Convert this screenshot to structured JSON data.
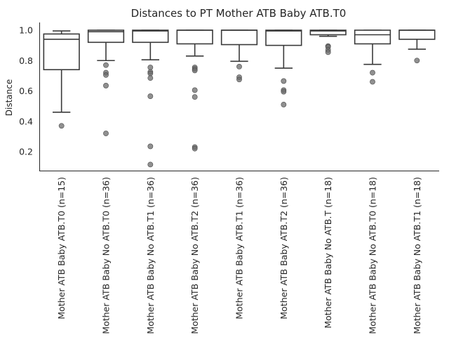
{
  "chart_data": {
    "type": "box",
    "title": "Distances to PT Mother ATB Baby ATB.T0",
    "ylabel": "Distance",
    "xlabel": "",
    "ylim": [
      0.06,
      1.05
    ],
    "yticks": [
      0.2,
      0.4,
      0.6,
      0.8,
      1.0
    ],
    "ytick_labels": [
      "0.2",
      "0.4",
      "0.6",
      "0.8",
      "1.0"
    ],
    "grid": false,
    "categories": [
      "Mother ATB Baby ATB.T0 (n=15)",
      "Mother ATB Baby No ATB.T0 (n=36)",
      "Mother ATB Baby No ATB.T1 (n=36)",
      "Mother ATB Baby No ATB.T2 (n=36)",
      "Mother ATB Baby ATB.T1 (n=36)",
      "Mother ATB Baby ATB.T2 (n=36)",
      "Mother ATB Baby No ATB.T (n=18)",
      "Mother ATB Baby No ATB.T0 (n=18)",
      "Mother ATB Baby No ATB.T1 (n=18)"
    ],
    "boxes": [
      {
        "whisker_low": 0.46,
        "q1": 0.74,
        "median": 0.94,
        "q3": 0.975,
        "whisker_high": 0.995,
        "fliers": [
          0.37
        ]
      },
      {
        "whisker_low": 0.8,
        "q1": 0.92,
        "median": 0.99,
        "q3": 1.0,
        "whisker_high": 1.0,
        "fliers": [
          0.77,
          0.72,
          0.705,
          0.635,
          0.32
        ]
      },
      {
        "whisker_low": 0.805,
        "q1": 0.92,
        "median": 0.995,
        "q3": 1.0,
        "whisker_high": 1.0,
        "fliers": [
          0.755,
          0.725,
          0.715,
          0.685,
          0.565,
          0.235,
          0.115
        ]
      },
      {
        "whisker_low": 0.83,
        "q1": 0.91,
        "median": 1.0,
        "q3": 1.0,
        "whisker_high": 1.0,
        "fliers": [
          0.755,
          0.745,
          0.735,
          0.605,
          0.56,
          0.23,
          0.22
        ]
      },
      {
        "whisker_low": 0.795,
        "q1": 0.905,
        "median": 1.0,
        "q3": 1.0,
        "whisker_high": 1.0,
        "fliers": [
          0.76,
          0.69,
          0.675
        ]
      },
      {
        "whisker_low": 0.75,
        "q1": 0.9,
        "median": 0.995,
        "q3": 1.0,
        "whisker_high": 1.0,
        "fliers": [
          0.665,
          0.605,
          0.595,
          0.51
        ]
      },
      {
        "whisker_low": 0.96,
        "q1": 0.97,
        "median": 0.995,
        "q3": 1.0,
        "whisker_high": 1.0,
        "fliers": [
          0.895,
          0.89,
          0.87,
          0.855
        ]
      },
      {
        "whisker_low": 0.775,
        "q1": 0.91,
        "median": 0.97,
        "q3": 1.0,
        "whisker_high": 1.0,
        "fliers": [
          0.72,
          0.66
        ]
      },
      {
        "whisker_low": 0.875,
        "q1": 0.94,
        "median": 1.0,
        "q3": 1.0,
        "whisker_high": 1.0,
        "fliers": [
          0.8
        ]
      }
    ],
    "colors": {
      "box_edge": "#3a3a3a",
      "box_fill": "#ffffff",
      "flier": "#6b6b6b",
      "axis": "#262626"
    }
  }
}
